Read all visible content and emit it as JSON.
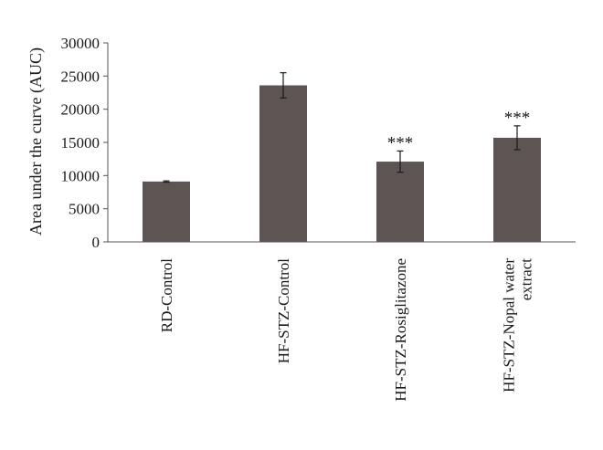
{
  "chart_data": {
    "type": "bar",
    "title": "",
    "xlabel": "",
    "ylabel": "Area under the curve (AUC)",
    "ylim": [
      0,
      30000
    ],
    "yticks": [
      0,
      5000,
      10000,
      15000,
      20000,
      25000,
      30000
    ],
    "ytick_labels": [
      "0",
      "5000",
      "10000",
      "15000",
      "20000",
      "25000",
      "30000"
    ],
    "categories": [
      [
        "RD-Control"
      ],
      [
        "HF-STZ-Control"
      ],
      [
        "HF-STZ-Rosiglitazone"
      ],
      [
        "HF-STZ-Nopal water",
        "extract"
      ]
    ],
    "values": [
      9100,
      23600,
      12100,
      15700
    ],
    "errors": [
      100,
      1900,
      1600,
      1800
    ],
    "significance": [
      "",
      "",
      "***",
      "***"
    ],
    "grid": false,
    "bar_color": "#5c5553",
    "axis_color": "#555555"
  }
}
